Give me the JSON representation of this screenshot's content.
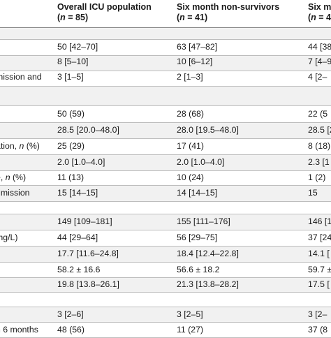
{
  "header": {
    "col1": {
      "line1": "Overall ICU population",
      "line2_pre": "(",
      "line2_n": "n",
      "line2_post": " = 85)"
    },
    "col2": {
      "line1": "Six month non-survivors",
      "line2_pre": "(",
      "line2_n": "n",
      "line2_post": " = 41)"
    },
    "col3": {
      "line1": "Six m",
      "line2_pre": "(",
      "line2_n": "n",
      "line2_post": " = 4"
    }
  },
  "rows": [
    {
      "label": "",
      "v1": "",
      "v2": "",
      "v3": ""
    },
    {
      "label": "",
      "v1": "50 [42–70]",
      "v2": "63 [47–82]",
      "v3": "44 [38"
    },
    {
      "label": "",
      "v1": "8 [5–10]",
      "v2": "10 [6–12]",
      "v3": "7 [4–9"
    },
    {
      "label": "mission and",
      "v1": "3 [1–5]",
      "v2": "2 [1–3]",
      "v3": "4 [2–"
    },
    {
      "label": "",
      "v1": "",
      "v2": "",
      "v3": ""
    },
    {
      "label": "",
      "v1": "50 (59)",
      "v2": "28 (68)",
      "v3": "22 (5"
    },
    {
      "label": "",
      "v1": "28.5 [20.0–48.0]",
      "v2": "28.0 [19.5–48.0]",
      "v3": "28.5 [2"
    },
    {
      "label_pre": "ation, ",
      "label_n": "n",
      "label_post": " (%)",
      "v1": "25 (29)",
      "v2": "17 (41)",
      "v3": "8 (18)"
    },
    {
      "label": "",
      "v1": "2.0 [1.0–4.0]",
      "v2": "2.0 [1.0–4.0]",
      "v3": "2.3 [1"
    },
    {
      "label_pre": "e, ",
      "label_n": "n",
      "label_post": " (%)",
      "v1": "11 (13)",
      "v2": "10 (24)",
      "v3": "1 (2)"
    },
    {
      "label": "dmission",
      "v1": "15 [14–15]",
      "v2": "14 [14–15]",
      "v3": "15"
    },
    {
      "label": "",
      "v1": "",
      "v2": "",
      "v3": ""
    },
    {
      "label": "",
      "v1": "149 [109–181]",
      "v2": "155 [111–176]",
      "v3": "146 [1"
    },
    {
      "label": "mg/L)",
      "v1": "44 [29–64]",
      "v2": "56 [29–75]",
      "v3": "37 [24"
    },
    {
      "label": "",
      "v1": "17.7 [11.6–24.8]",
      "v2": "18.4 [12.4–22.8]",
      "v3": "14.1 ["
    },
    {
      "label": "",
      "v1": "58.2 ± 16.6",
      "v2": "56.6 ± 18.2",
      "v3": "59.7 ±"
    },
    {
      "label": "",
      "v1": "19.8 [13.8–26.1]",
      "v2": "21.3 [13.8–28.2]",
      "v3": "17.5 ["
    },
    {
      "label": "",
      "v1": "",
      "v2": "",
      "v3": ""
    },
    {
      "label": "",
      "v1": "3 [2–6]",
      "v2": "3 [2–5]",
      "v3": "3 [2–"
    },
    {
      "label": "n 6 months",
      "v1": "48 (56)",
      "v2": "11 (27)",
      "v3": "37 (8"
    }
  ]
}
